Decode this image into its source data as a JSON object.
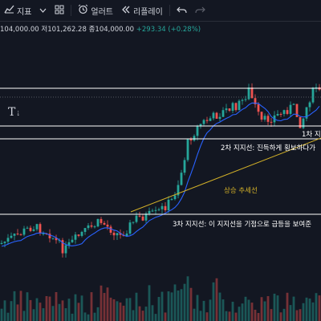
{
  "toolbar": {
    "indicators_label": "지표",
    "alert_label": "얼러트",
    "replay_label": "리플레이",
    "icons": [
      "indicators-icon",
      "chevron-down-icon",
      "layout-grid-icon",
      "alarm-clock-icon",
      "replay-icon",
      "undo-icon",
      "redo-icon"
    ]
  },
  "ohlc": {
    "open": "104,000.00",
    "low_prefix": "저",
    "low": "101,262.28",
    "close_prefix": "종",
    "close": "104,000.00",
    "change": "+293.34 (+0.28%)"
  },
  "annotations": {
    "support1": "1차 지지",
    "support2": "2차 지지선: 진득하게 횡보하다가",
    "support3": "3차 지지선: 이 지지선을 기점으로 급등을 보여준",
    "trend": "상승 추세선"
  },
  "text_tool_icon": "text-tool-icon",
  "colors": {
    "background": "#131722",
    "up": "#26a69a",
    "down": "#ef5350",
    "ma": "#2962ff",
    "trendline": "#d4b228",
    "support_line": "#ffffff"
  }
}
